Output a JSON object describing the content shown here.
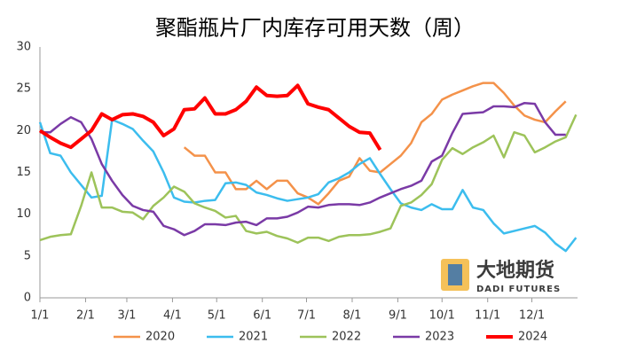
{
  "chart_data": {
    "type": "line",
    "title": "聚酯瓶片厂内库存可用天数（周）",
    "watermark": {
      "name": "大地期货",
      "subtitle": "DADI FUTURES"
    },
    "x": [
      0,
      7,
      14,
      21,
      28,
      35,
      42,
      49,
      56,
      63,
      70,
      77,
      84,
      91,
      98,
      105,
      112,
      119,
      126,
      133,
      140,
      147,
      154,
      161,
      168,
      175,
      182,
      189,
      196,
      203,
      210,
      217,
      224,
      231,
      238,
      245,
      252,
      259,
      266,
      273,
      280,
      287,
      294,
      301,
      308,
      315,
      322,
      329,
      336,
      343,
      350,
      357,
      364
    ],
    "xlim": [
      0,
      365
    ],
    "xticks": [
      {
        "value": 0,
        "label": "1/1"
      },
      {
        "value": 31,
        "label": "2/1"
      },
      {
        "value": 59,
        "label": "3/1"
      },
      {
        "value": 90,
        "label": "4/1"
      },
      {
        "value": 120,
        "label": "5/1"
      },
      {
        "value": 151,
        "label": "6/1"
      },
      {
        "value": 181,
        "label": "7/1"
      },
      {
        "value": 212,
        "label": "8/1"
      },
      {
        "value": 243,
        "label": "9/1"
      },
      {
        "value": 273,
        "label": "10/1"
      },
      {
        "value": 304,
        "label": "11/1"
      },
      {
        "value": 334,
        "label": "12/1"
      }
    ],
    "ylim": [
      0,
      30
    ],
    "yticks": [
      0,
      5,
      10,
      15,
      20,
      25,
      30
    ],
    "legend": "bottom",
    "series": [
      {
        "name": "2020",
        "color": "#f4924a",
        "width": 2.5,
        "values": [
          null,
          null,
          null,
          null,
          null,
          null,
          null,
          null,
          null,
          null,
          null,
          null,
          null,
          null,
          18,
          17,
          17,
          15,
          15,
          13,
          13,
          14,
          13,
          14,
          14,
          12.5,
          12,
          11.2,
          12.5,
          14,
          14.5,
          16.7,
          15.2,
          15,
          16,
          17,
          18.5,
          21,
          22,
          23.7,
          24.3,
          24.8,
          25.3,
          25.7,
          25.7,
          24.5,
          23,
          21.8,
          21.3,
          21,
          22.3,
          23.5,
          null
        ]
      },
      {
        "name": "2021",
        "color": "#3cbdee",
        "width": 2.5,
        "values": [
          21,
          17.3,
          17,
          15,
          13.5,
          12,
          12.2,
          21.3,
          20.8,
          20.2,
          18.8,
          17.5,
          15,
          12,
          11.5,
          11.4,
          11.6,
          11.7,
          13.7,
          13.8,
          13.5,
          12.6,
          12.3,
          11.9,
          11.6,
          11.8,
          12,
          12.4,
          13.8,
          14.3,
          15,
          16,
          16.7,
          14.8,
          13,
          11.3,
          10.8,
          10.5,
          11.2,
          10.6,
          10.6,
          12.9,
          10.8,
          10.5,
          8.9,
          7.7,
          8,
          8.3,
          8.6,
          7.8,
          6.5,
          5.6,
          7.2
        ]
      },
      {
        "name": "2022",
        "color": "#9dc35a",
        "width": 2.5,
        "values": [
          6.9,
          7.3,
          7.5,
          7.6,
          11,
          15,
          10.8,
          10.8,
          10.3,
          10.2,
          9.4,
          11,
          12,
          13.3,
          12.7,
          11.3,
          10.8,
          10.4,
          9.6,
          9.8,
          8,
          7.7,
          7.9,
          7.4,
          7.1,
          6.6,
          7.2,
          7.2,
          6.8,
          7.3,
          7.5,
          7.5,
          7.6,
          7.9,
          8.3,
          11,
          11.4,
          12.3,
          13.6,
          16.5,
          17.9,
          17.2,
          18,
          18.6,
          19.4,
          16.8,
          19.8,
          19.4,
          17.4,
          18,
          18.7,
          19.2,
          21.9
        ]
      },
      {
        "name": "2023",
        "color": "#7a3aa6",
        "width": 2.5,
        "values": [
          19.8,
          19.8,
          20.8,
          21.6,
          21,
          19,
          16,
          14,
          12.3,
          11,
          10.5,
          10.3,
          8.6,
          8.2,
          7.5,
          8,
          8.8,
          8.8,
          8.7,
          9,
          9.1,
          8.7,
          9.5,
          9.5,
          9.7,
          10.2,
          10.9,
          10.8,
          11.1,
          11.2,
          11.2,
          11.1,
          11.4,
          12,
          12.5,
          13,
          13.4,
          14,
          16.3,
          17,
          19.7,
          22,
          22.1,
          22.2,
          22.9,
          22.9,
          22.8,
          23.3,
          23.2,
          21,
          19.5,
          19.5,
          null
        ]
      },
      {
        "name": "2024",
        "color": "#ff0000",
        "width": 4,
        "values": [
          20,
          19.2,
          18.5,
          18,
          19,
          20,
          22,
          21.3,
          21.9,
          22,
          21.7,
          21,
          19.4,
          20.2,
          22.5,
          22.6,
          23.9,
          22,
          22,
          22.5,
          23.5,
          25.2,
          24.2,
          24.1,
          24.2,
          25.4,
          23.2,
          22.8,
          22.5,
          21.5,
          20.5,
          19.8,
          19.7,
          17.7,
          null,
          null,
          null,
          null,
          null,
          null,
          null,
          null,
          null,
          null,
          null,
          null,
          null,
          null,
          null,
          null,
          null,
          null,
          null
        ]
      }
    ]
  }
}
